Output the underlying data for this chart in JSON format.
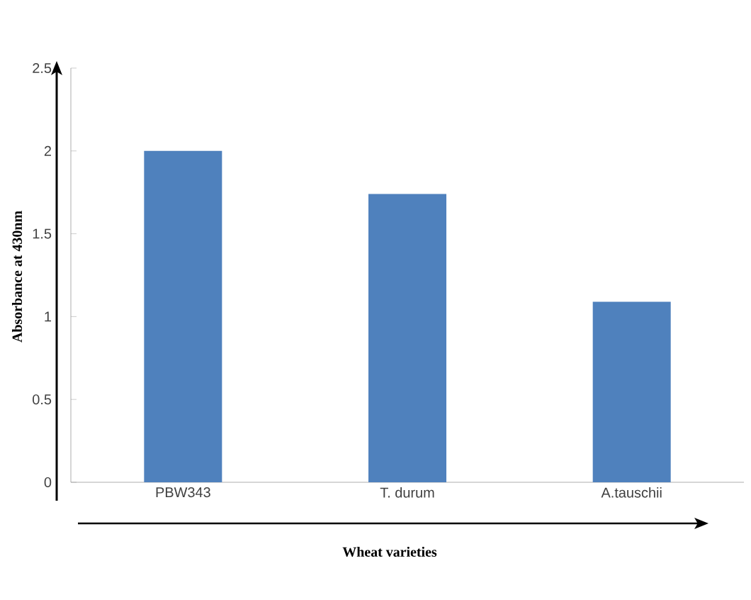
{
  "chart_data": {
    "type": "bar",
    "xlabel": "Wheat varieties",
    "ylabel": "Absorbance at 430nm",
    "categories": [
      "PBW343",
      "T. durum",
      "A.tauschii"
    ],
    "values": [
      2.0,
      1.74,
      1.09
    ],
    "color": "#4f81bd",
    "ylim": [
      0,
      2.5
    ],
    "yticks": [
      0,
      0.5,
      1,
      1.5,
      2,
      2.5
    ],
    "grid": false
  }
}
